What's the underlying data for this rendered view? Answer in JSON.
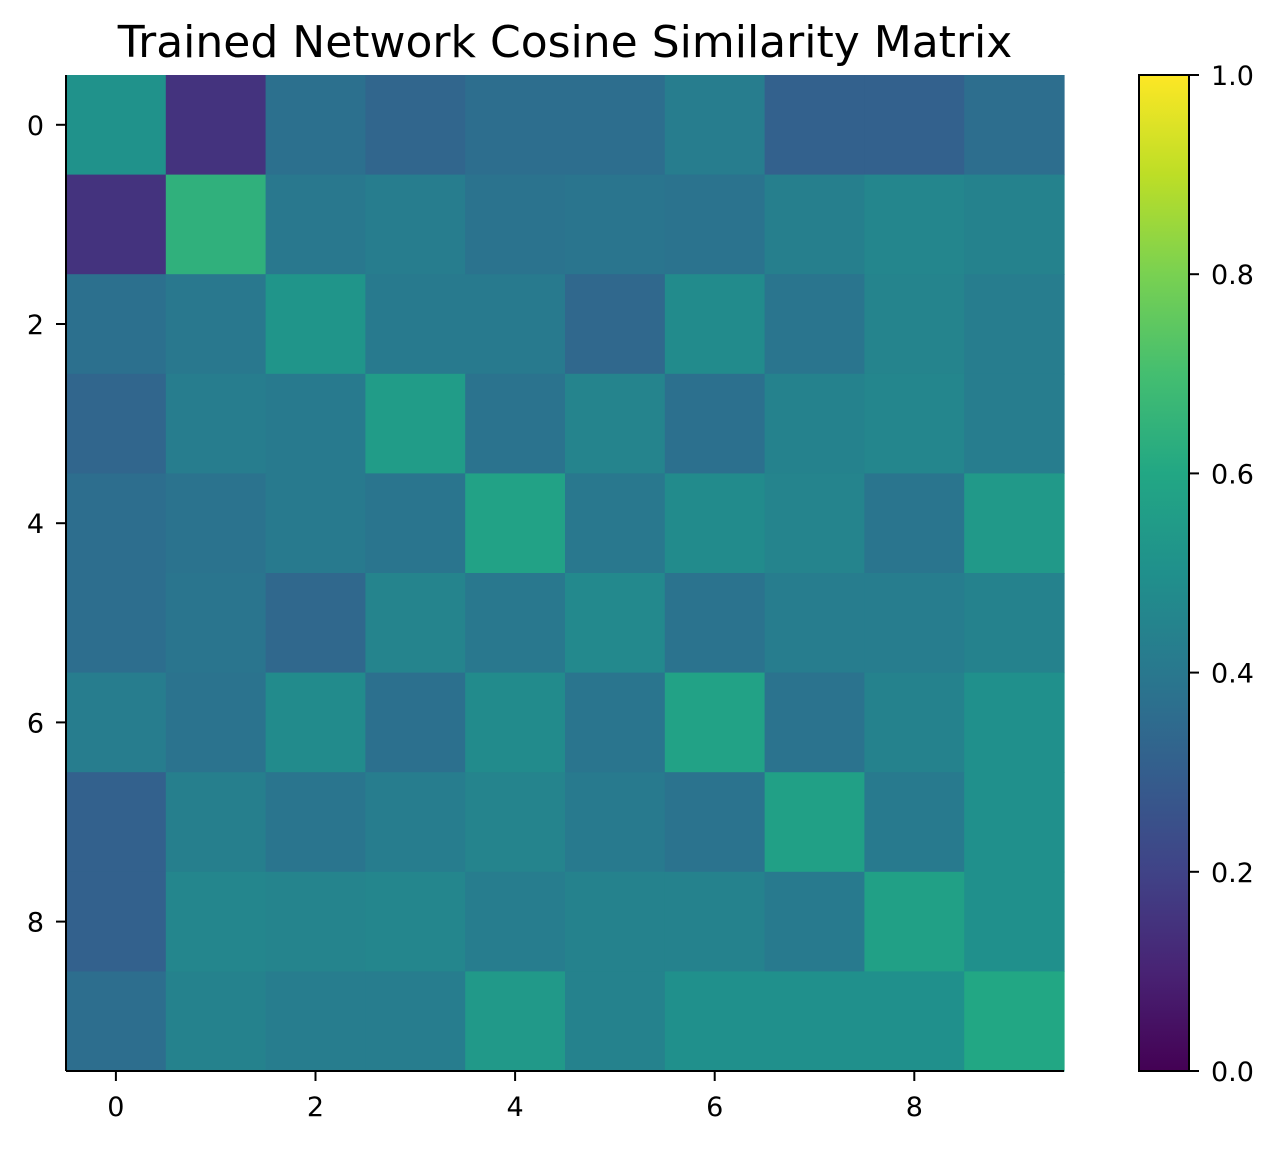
{
  "chart_data": {
    "type": "heatmap",
    "title": "Trained Network Cosine Similarity Matrix",
    "xlabel": "",
    "ylabel": "",
    "x_ticks": [
      0,
      2,
      4,
      6,
      8
    ],
    "y_ticks": [
      0,
      2,
      4,
      6,
      8
    ],
    "colormap": "viridis",
    "vmin": 0.0,
    "vmax": 1.0,
    "colorbar_ticks": [
      "0.0",
      "0.2",
      "0.4",
      "0.6",
      "0.8",
      "1.0"
    ],
    "matrix": [
      [
        0.51,
        0.15,
        0.37,
        0.33,
        0.36,
        0.36,
        0.42,
        0.31,
        0.31,
        0.36
      ],
      [
        0.15,
        0.64,
        0.4,
        0.42,
        0.38,
        0.39,
        0.38,
        0.43,
        0.46,
        0.44
      ],
      [
        0.37,
        0.4,
        0.52,
        0.41,
        0.41,
        0.34,
        0.48,
        0.39,
        0.45,
        0.42
      ],
      [
        0.33,
        0.42,
        0.41,
        0.55,
        0.38,
        0.45,
        0.37,
        0.44,
        0.46,
        0.42
      ],
      [
        0.36,
        0.38,
        0.41,
        0.39,
        0.58,
        0.4,
        0.48,
        0.45,
        0.39,
        0.54
      ],
      [
        0.36,
        0.39,
        0.34,
        0.45,
        0.4,
        0.47,
        0.38,
        0.42,
        0.42,
        0.44
      ],
      [
        0.42,
        0.38,
        0.48,
        0.37,
        0.48,
        0.39,
        0.58,
        0.38,
        0.44,
        0.5
      ],
      [
        0.31,
        0.43,
        0.39,
        0.42,
        0.45,
        0.41,
        0.38,
        0.57,
        0.41,
        0.5
      ],
      [
        0.31,
        0.46,
        0.45,
        0.46,
        0.42,
        0.44,
        0.44,
        0.41,
        0.57,
        0.5
      ],
      [
        0.36,
        0.44,
        0.42,
        0.42,
        0.54,
        0.44,
        0.5,
        0.5,
        0.5,
        0.6
      ]
    ]
  }
}
